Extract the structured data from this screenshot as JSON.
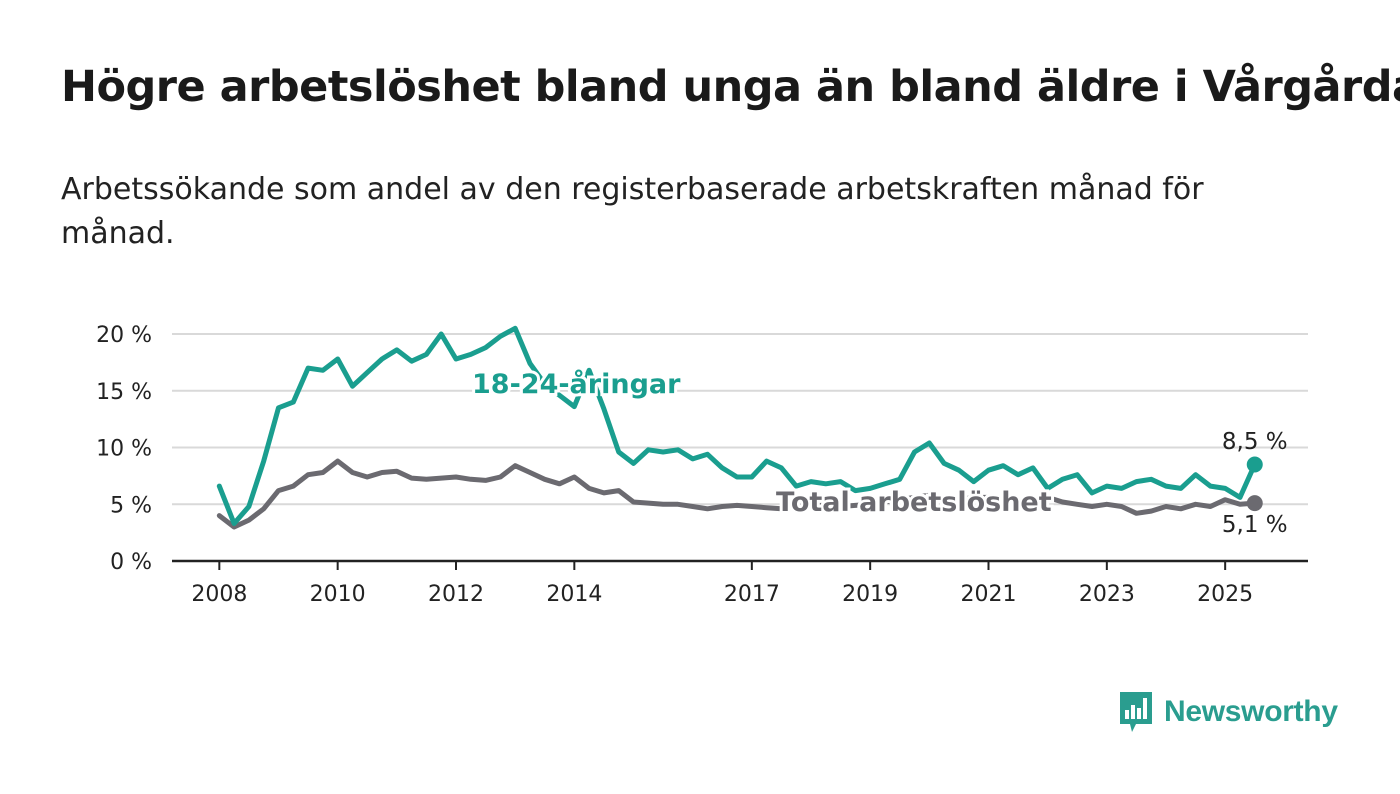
{
  "title": "Högre arbetslöshet bland unga än bland äldre i Vårgårda",
  "subtitle": "Arbetssökande som andel av den registerbaserade arbetskraften månad för månad.",
  "brand": {
    "name": "Newsworthy",
    "color": "#2a9d8f",
    "icon": "newsworthy-logo-icon"
  },
  "colors": {
    "youth": "#1a9e8f",
    "total": "#6b6a70",
    "grid": "#d9d9d9",
    "axis": "#222222"
  },
  "chart_data": {
    "type": "line",
    "title": "Högre arbetslöshet bland unga än bland äldre i Vårgårda",
    "subtitle": "Arbetssökande som andel av den registerbaserade arbetskraften månad för månad.",
    "ylim": [
      0,
      20
    ],
    "y_ticks": [
      0,
      5,
      10,
      15,
      20
    ],
    "y_tick_labels": [
      "0 %",
      "5 %",
      "10 %",
      "15 %",
      "20 %"
    ],
    "x_ticks": [
      2008,
      2010,
      2012,
      2014,
      2017,
      2019,
      2021,
      2023,
      2025
    ],
    "x_tick_labels": [
      "2008",
      "2010",
      "2012",
      "2014",
      "2017",
      "2019",
      "2021",
      "2023",
      "2025"
    ],
    "xlim": [
      2007.2,
      2026.4
    ],
    "grid": true,
    "end_labels": {
      "youth": "8,5 %",
      "total": "5,1 %"
    },
    "series": [
      {
        "name": "18-24-åringar",
        "key": "youth",
        "x": [
          2008.0,
          2008.25,
          2008.5,
          2008.75,
          2009.0,
          2009.25,
          2009.5,
          2009.75,
          2010.0,
          2010.25,
          2010.5,
          2010.75,
          2011.0,
          2011.25,
          2011.5,
          2011.75,
          2012.0,
          2012.25,
          2012.5,
          2012.75,
          2013.0,
          2013.25,
          2013.5,
          2013.75,
          2014.0,
          2014.25,
          2014.5,
          2014.75,
          2015.0,
          2015.25,
          2015.5,
          2015.75,
          2016.0,
          2016.25,
          2016.5,
          2016.75,
          2017.0,
          2017.25,
          2017.5,
          2017.75,
          2018.0,
          2018.25,
          2018.5,
          2018.75,
          2019.0,
          2019.25,
          2019.5,
          2019.75,
          2020.0,
          2020.25,
          2020.5,
          2020.75,
          2021.0,
          2021.25,
          2021.5,
          2021.75,
          2022.0,
          2022.25,
          2022.5,
          2022.75,
          2023.0,
          2023.25,
          2023.5,
          2023.75,
          2024.0,
          2024.25,
          2024.5,
          2024.75,
          2025.0,
          2025.25,
          2025.5
        ],
        "values": [
          6.6,
          3.3,
          4.8,
          8.8,
          13.5,
          14.0,
          17.0,
          16.8,
          17.8,
          15.4,
          16.6,
          17.8,
          18.6,
          17.6,
          18.2,
          20.0,
          17.8,
          18.2,
          18.8,
          19.8,
          20.5,
          17.4,
          15.6,
          14.6,
          13.6,
          16.8,
          13.4,
          9.6,
          8.6,
          9.8,
          9.6,
          9.8,
          9.0,
          9.4,
          8.2,
          7.4,
          7.4,
          8.8,
          8.2,
          6.6,
          7.0,
          6.8,
          7.0,
          6.2,
          6.4,
          6.8,
          7.2,
          9.6,
          10.4,
          8.6,
          8.0,
          7.0,
          8.0,
          8.4,
          7.6,
          8.2,
          6.4,
          7.2,
          7.6,
          6.0,
          6.6,
          6.4,
          7.0,
          7.2,
          6.6,
          6.4,
          7.6,
          6.6,
          6.4,
          5.6,
          8.5
        ]
      },
      {
        "name": "Total arbetslöshet",
        "key": "total",
        "x": [
          2008.0,
          2008.25,
          2008.5,
          2008.75,
          2009.0,
          2009.25,
          2009.5,
          2009.75,
          2010.0,
          2010.25,
          2010.5,
          2010.75,
          2011.0,
          2011.25,
          2011.5,
          2011.75,
          2012.0,
          2012.25,
          2012.5,
          2012.75,
          2013.0,
          2013.25,
          2013.5,
          2013.75,
          2014.0,
          2014.25,
          2014.5,
          2014.75,
          2015.0,
          2015.25,
          2015.5,
          2015.75,
          2016.0,
          2016.25,
          2016.5,
          2016.75,
          2017.0,
          2017.25,
          2017.5,
          2017.75,
          2018.0,
          2018.25,
          2018.5,
          2018.75,
          2019.0,
          2019.25,
          2019.5,
          2019.75,
          2020.0,
          2020.25,
          2020.5,
          2020.75,
          2021.0,
          2021.25,
          2021.5,
          2021.75,
          2022.0,
          2022.25,
          2022.5,
          2022.75,
          2023.0,
          2023.25,
          2023.5,
          2023.75,
          2024.0,
          2024.25,
          2024.5,
          2024.75,
          2025.0,
          2025.25,
          2025.5
        ],
        "values": [
          4.0,
          3.0,
          3.6,
          4.6,
          6.2,
          6.6,
          7.6,
          7.8,
          8.8,
          7.8,
          7.4,
          7.8,
          7.9,
          7.3,
          7.2,
          7.3,
          7.4,
          7.2,
          7.1,
          7.4,
          8.4,
          7.8,
          7.2,
          6.8,
          7.4,
          6.4,
          6.0,
          6.2,
          5.2,
          5.1,
          5.0,
          5.0,
          4.8,
          4.6,
          4.8,
          4.9,
          4.8,
          4.7,
          4.6,
          4.8,
          5.0,
          4.9,
          4.8,
          4.9,
          5.0,
          5.2,
          5.4,
          5.6,
          5.8,
          5.6,
          5.4,
          5.6,
          5.6,
          5.4,
          5.2,
          5.4,
          5.6,
          5.2,
          5.0,
          4.8,
          5.0,
          4.8,
          4.2,
          4.4,
          4.8,
          4.6,
          5.0,
          4.8,
          5.4,
          5.0,
          5.1
        ]
      }
    ]
  }
}
